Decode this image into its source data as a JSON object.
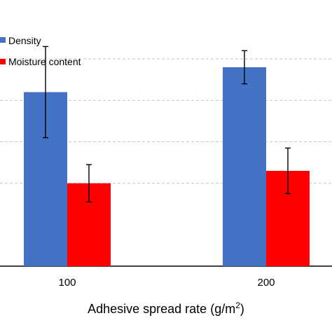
{
  "chart_data": {
    "type": "bar",
    "categories": [
      "100",
      "200"
    ],
    "series": [
      {
        "name": "Density",
        "color": "#4472C4",
        "values": [
          0.62,
          0.68
        ],
        "errors": [
          0.11,
          0.04
        ]
      },
      {
        "name": "Moisture content",
        "color": "#FF0000",
        "values": [
          0.4,
          0.43
        ],
        "errors": [
          0.045,
          0.055
        ]
      }
    ],
    "xlabel": "Adhesive spread rate (g/m",
    "xlabel_sup": "2",
    "xlabel_close": ")",
    "ylim": [
      0.2,
      0.8
    ],
    "grid": true,
    "legend_position": "top-left"
  }
}
